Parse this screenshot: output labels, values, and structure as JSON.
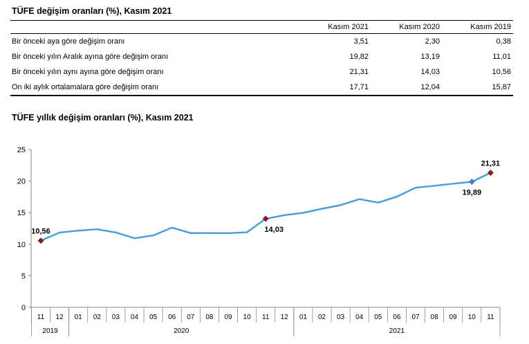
{
  "table": {
    "title": "TÜFE değişim oranları (%), Kasım 2021",
    "columns": [
      "Kasım 2021",
      "Kasım 2020",
      "Kasım 2019"
    ],
    "rows": [
      {
        "label": "Bir önceki aya göre değişim oranı",
        "values": [
          "3,51",
          "2,30",
          "0,38"
        ]
      },
      {
        "label": "Bir önceki yılın Aralık ayına göre değişim oranı",
        "values": [
          "19,82",
          "13,19",
          "11,01"
        ]
      },
      {
        "label": "Bir önceki yılın aynı ayına göre değişim oranı",
        "values": [
          "21,31",
          "14,03",
          "10,56"
        ]
      },
      {
        "label": "On iki aylık ortalamalara göre değişim oranı",
        "values": [
          "17,71",
          "12,04",
          "15,87"
        ]
      }
    ]
  },
  "chart_data": {
    "type": "line",
    "title": "TÜFE yıllık değişim oranları (%), Kasım 2021",
    "x": [
      "11",
      "12",
      "01",
      "02",
      "03",
      "04",
      "05",
      "06",
      "07",
      "08",
      "09",
      "10",
      "11",
      "12",
      "01",
      "02",
      "03",
      "04",
      "05",
      "06",
      "07",
      "08",
      "09",
      "10",
      "11"
    ],
    "years": [
      {
        "label": "2019",
        "from": 0,
        "to": 1
      },
      {
        "label": "2020",
        "from": 2,
        "to": 13
      },
      {
        "label": "2021",
        "from": 14,
        "to": 24
      }
    ],
    "series": [
      {
        "values": [
          10.56,
          11.84,
          12.15,
          12.37,
          11.86,
          10.94,
          11.39,
          12.62,
          11.76,
          11.77,
          11.75,
          11.89,
          14.03,
          14.6,
          14.97,
          15.61,
          16.19,
          17.14,
          16.59,
          17.53,
          18.95,
          19.25,
          19.58,
          19.89,
          21.31
        ],
        "color": "#4a9fd8"
      }
    ],
    "highlighted_points": [
      {
        "index": 0,
        "label": "10,56",
        "marker": "diamond-red",
        "label_pos": "above"
      },
      {
        "index": 12,
        "label": "14,03",
        "marker": "diamond-red",
        "label_pos": "below"
      },
      {
        "index": 23,
        "label": "19,89",
        "marker": "diamond-blue",
        "label_pos": "below"
      },
      {
        "index": 24,
        "label": "21,31",
        "marker": "diamond-red",
        "label_pos": "above"
      }
    ],
    "yticks": [
      0,
      5,
      10,
      15,
      20,
      25
    ],
    "ylim": [
      0,
      25
    ],
    "grid": false,
    "colors": {
      "line": "#4a9fd8",
      "marker_red": "#8b1a1a",
      "marker_blue": "#4a7fc0",
      "axis": "#888888"
    }
  }
}
